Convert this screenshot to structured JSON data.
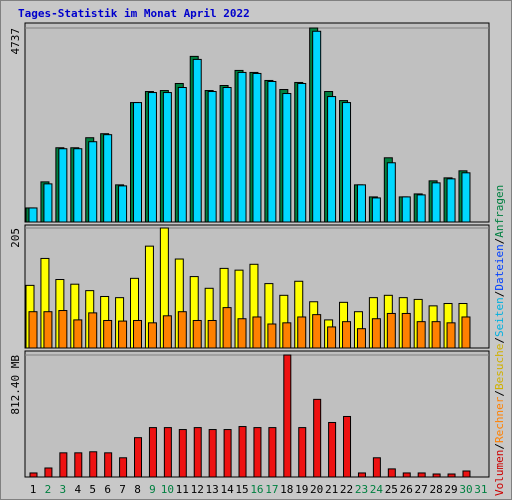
{
  "chart_data": {
    "type": "bar",
    "title": "Tages-Statistik im Monat April 2022",
    "categories": [
      "1",
      "2",
      "3",
      "4",
      "5",
      "6",
      "7",
      "8",
      "9",
      "10",
      "11",
      "12",
      "13",
      "14",
      "15",
      "16",
      "17",
      "18",
      "19",
      "20",
      "21",
      "22",
      "23",
      "24",
      "25",
      "26",
      "27",
      "28",
      "29",
      "30",
      "31"
    ],
    "category_colors": [
      "#000000",
      "#008040",
      "#008040",
      "#000000",
      "#000000",
      "#000000",
      "#000000",
      "#000000",
      "#008040",
      "#008040",
      "#000000",
      "#000000",
      "#000000",
      "#000000",
      "#000000",
      "#008040",
      "#008040",
      "#000000",
      "#000000",
      "#000000",
      "#000000",
      "#000000",
      "#008040",
      "#008040",
      "#000000",
      "#000000",
      "#000000",
      "#000000",
      "#000000",
      "#008040",
      "#008040"
    ],
    "legend_separator": "/",
    "legend": [
      {
        "text": "Volumen",
        "color": "#cc0000"
      },
      {
        "text": "Rechner",
        "color": "#ff8000"
      },
      {
        "text": "Besuche",
        "color": "#d0b000"
      },
      {
        "text": "Seiten",
        "color": "#00b0e0"
      },
      {
        "text": "Dateien",
        "color": "#0040ff"
      },
      {
        "text": "Anfragen",
        "color": "#008040"
      }
    ],
    "panels": [
      {
        "type": "bar",
        "ylim": [
          0,
          4737
        ],
        "yticks": [
          4737
        ],
        "series": [
          {
            "color": "#008040",
            "values": [
              343,
              980,
              1813,
              1813,
              2058,
              2156,
              907,
              2916,
              3186,
              3210,
              3382,
              4044,
              3210,
              3333,
              3701,
              3652,
              3456,
              3235,
              3407,
              4737,
              3186,
              2965,
              907,
              613,
              1568,
              613,
              686,
              1005,
              1078,
              1250,
              null
            ]
          },
          {
            "color": "#00d8ff",
            "values": [
              343,
              931,
              1789,
              1789,
              1960,
              2132,
              882,
              2916,
              3161,
              3161,
              3284,
              3970,
              3186,
              3284,
              3652,
              3627,
              3431,
              3137,
              3382,
              4657,
              3063,
              2916,
              907,
              588,
              1446,
              613,
              662,
              956,
              1054,
              1201,
              null
            ]
          }
        ]
      },
      {
        "type": "bar",
        "ylim": [
          0,
          205
        ],
        "yticks": [
          205
        ],
        "series": [
          {
            "color": "#ffff00",
            "values": [
              107,
              153,
              117,
              109,
              98,
              88,
              86,
              119,
              174,
              205,
              152,
              122,
              102,
              136,
              133,
              143,
              110,
              90,
              114,
              79,
              48,
              78,
              62,
              86,
              90,
              86,
              83,
              72,
              76,
              76,
              null
            ]
          },
          {
            "color": "#ff8000",
            "values": [
              62,
              62,
              64,
              48,
              60,
              47,
              46,
              47,
              43,
              55,
              62,
              47,
              47,
              69,
              50,
              53,
              41,
              43,
              53,
              57,
              36,
              45,
              33,
              50,
              59,
              59,
              45,
              45,
              43,
              53,
              null
            ]
          }
        ]
      },
      {
        "type": "bar",
        "ylim": [
          0,
          812.4
        ],
        "yticks": [
          {
            "value": 812.4,
            "label": "812.40 MB"
          }
        ],
        "series": [
          {
            "color": "#ee1111",
            "values": [
              27,
              60,
              161,
              161,
              168,
              161,
              128,
              262,
              329,
              329,
              316,
              329,
              316,
              316,
              336,
              329,
              329,
              812.4,
              329,
              517,
              363,
              403,
              27,
              128,
              54,
              27,
              27,
              20,
              20,
              40,
              null
            ]
          }
        ]
      }
    ]
  }
}
